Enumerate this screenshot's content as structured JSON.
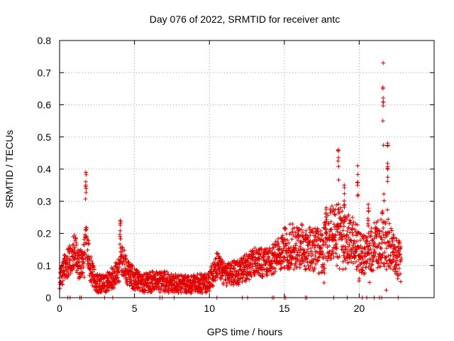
{
  "chart_data": {
    "type": "scatter",
    "title": "Day 076 of 2022, SRMTID for receiver antc",
    "xlabel": "GPS time / hours",
    "ylabel": "SRMTID / TECUs",
    "xlim": [
      0,
      25
    ],
    "ylim": [
      0,
      0.8
    ],
    "x_ticks": [
      0,
      5,
      10,
      15,
      20
    ],
    "y_ticks": [
      0,
      0.1,
      0.2,
      0.3,
      0.4,
      0.5,
      0.6,
      0.7,
      0.8
    ],
    "x_tick_labels": [
      "0",
      "5",
      "10",
      "15",
      "20"
    ],
    "y_tick_labels": [
      "0",
      "0.1",
      "0.2",
      "0.3",
      "0.4",
      "0.5",
      "0.6",
      "0.7",
      "0.8"
    ],
    "grid": true,
    "marker": "+",
    "color": "#e00000",
    "profile": [
      [
        0.0,
        0.05
      ],
      [
        0.3,
        0.09
      ],
      [
        0.7,
        0.12
      ],
      [
        1.0,
        0.15
      ],
      [
        1.3,
        0.1
      ],
      [
        1.6,
        0.12
      ],
      [
        1.8,
        0.2
      ],
      [
        2.0,
        0.1
      ],
      [
        2.3,
        0.06
      ],
      [
        2.6,
        0.04
      ],
      [
        3.0,
        0.04
      ],
      [
        3.5,
        0.06
      ],
      [
        3.9,
        0.08
      ],
      [
        4.2,
        0.12
      ],
      [
        4.5,
        0.08
      ],
      [
        5.0,
        0.06
      ],
      [
        5.5,
        0.04
      ],
      [
        6.0,
        0.05
      ],
      [
        7.0,
        0.05
      ],
      [
        8.0,
        0.04
      ],
      [
        9.0,
        0.04
      ],
      [
        10.0,
        0.05
      ],
      [
        10.5,
        0.1
      ],
      [
        11.0,
        0.07
      ],
      [
        12.0,
        0.08
      ],
      [
        13.0,
        0.11
      ],
      [
        14.0,
        0.11
      ],
      [
        15.0,
        0.15
      ],
      [
        15.5,
        0.16
      ],
      [
        16.0,
        0.16
      ],
      [
        16.5,
        0.15
      ],
      [
        17.0,
        0.15
      ],
      [
        17.5,
        0.14
      ],
      [
        18.0,
        0.2
      ],
      [
        18.5,
        0.21
      ],
      [
        19.0,
        0.19
      ],
      [
        19.5,
        0.18
      ],
      [
        20.0,
        0.14
      ],
      [
        20.5,
        0.13
      ],
      [
        21.0,
        0.16
      ],
      [
        21.5,
        0.17
      ],
      [
        22.0,
        0.16
      ],
      [
        22.5,
        0.12
      ],
      [
        22.8,
        0.11
      ]
    ],
    "spikes": [
      {
        "x": 1.75,
        "peak": 0.39,
        "width": 0.12
      },
      {
        "x": 4.05,
        "peak": 0.24,
        "width": 0.12
      },
      {
        "x": 17.8,
        "peak": 0.28,
        "width": 0.15
      },
      {
        "x": 18.6,
        "peak": 0.46,
        "width": 0.1
      },
      {
        "x": 19.0,
        "peak": 0.35,
        "width": 0.1
      },
      {
        "x": 19.9,
        "peak": 0.41,
        "width": 0.1
      },
      {
        "x": 20.6,
        "peak": 0.29,
        "width": 0.1
      },
      {
        "x": 21.6,
        "peak": 0.73,
        "width": 0.12
      },
      {
        "x": 21.9,
        "peak": 0.48,
        "width": 0.1
      }
    ],
    "zero_flags_x": [
      0.55,
      0.7,
      1.35,
      1.45,
      3.0,
      3.55,
      6.7,
      6.85,
      7.65,
      10.5,
      12.2,
      12.55,
      14.2,
      14.3,
      15.0,
      15.1,
      16.4,
      16.5,
      18.3,
      19.2,
      20.2,
      20.5,
      21.0,
      21.35,
      21.5,
      22.6
    ]
  }
}
